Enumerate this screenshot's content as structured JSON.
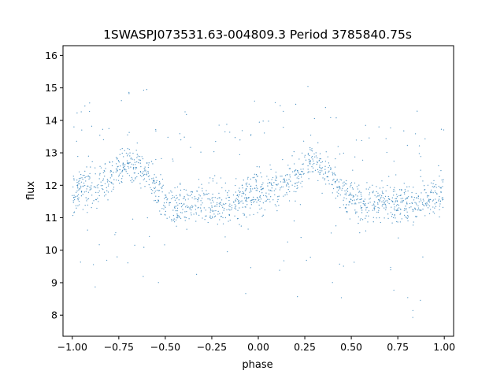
{
  "chart_data": {
    "type": "scatter",
    "title": "1SWASPJ073531.63-004809.3 Period 3785840.75s",
    "xlabel": "phase",
    "ylabel": "flux",
    "xlim": [
      -1.05,
      1.05
    ],
    "ylim": [
      7.35,
      16.3
    ],
    "x_ticks": [
      -1.0,
      -0.75,
      -0.5,
      -0.25,
      0.0,
      0.25,
      0.5,
      0.75,
      1.0
    ],
    "x_tick_labels": [
      "−1.00",
      "−0.75",
      "−0.50",
      "−0.25",
      "0.00",
      "0.25",
      "0.50",
      "0.75",
      "1.00"
    ],
    "y_ticks": [
      8,
      9,
      10,
      11,
      12,
      13,
      14,
      15,
      16
    ],
    "y_tick_labels": [
      "8",
      "9",
      "10",
      "11",
      "12",
      "13",
      "14",
      "15",
      "16"
    ],
    "grid": false,
    "legend": "none",
    "marker_color": "#1f77b4",
    "light_curve_profile": {
      "phase": [
        0.0,
        0.05,
        0.1,
        0.15,
        0.2,
        0.25,
        0.3,
        0.35,
        0.4,
        0.45,
        0.5,
        0.55,
        0.6,
        0.65,
        0.7,
        0.75,
        0.8,
        0.85,
        0.9,
        0.95,
        1.0
      ],
      "flux": [
        11.7,
        11.9,
        12.0,
        12.1,
        12.2,
        12.5,
        12.8,
        12.6,
        12.3,
        11.9,
        11.6,
        11.4,
        11.4,
        11.45,
        11.5,
        11.45,
        11.4,
        11.4,
        11.5,
        11.7,
        11.9
      ]
    }
  }
}
